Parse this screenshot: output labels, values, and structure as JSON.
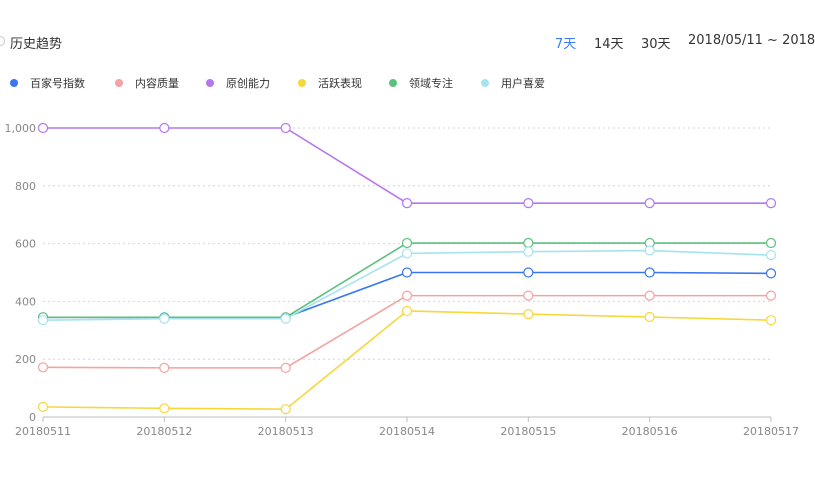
{
  "header": {
    "title": "历史趋势",
    "ranges": [
      {
        "label": "7天",
        "active": true
      },
      {
        "label": "14天",
        "active": false
      },
      {
        "label": "30天",
        "active": false
      }
    ],
    "date_range": "2018/05/11 ~ 2018"
  },
  "chart_data": {
    "type": "line",
    "x": [
      "20180511",
      "20180512",
      "20180513",
      "20180514",
      "20180515",
      "20180516",
      "20180517"
    ],
    "ylim": [
      0,
      1000
    ],
    "yticks": [
      0,
      200,
      400,
      600,
      800,
      1000
    ],
    "ytick_labels": [
      "0",
      "200",
      "400",
      "600",
      "800",
      "1,000"
    ],
    "grid": true,
    "legend_position": "top-left",
    "series": [
      {
        "name": "百家号指数",
        "color": "#3b77f0",
        "values": [
          345,
          345,
          345,
          500,
          500,
          500,
          497
        ]
      },
      {
        "name": "内容质量",
        "color": "#f4a2a2",
        "values": [
          172,
          170,
          170,
          420,
          420,
          420,
          420
        ]
      },
      {
        "name": "原创能力",
        "color": "#b576f0",
        "values": [
          1000,
          1000,
          1000,
          740,
          740,
          740,
          740
        ]
      },
      {
        "name": "活跃表现",
        "color": "#f7d73c",
        "values": [
          35,
          30,
          27,
          367,
          356,
          346,
          335
        ]
      },
      {
        "name": "领域专注",
        "color": "#5cc07e",
        "values": [
          345,
          345,
          345,
          602,
          602,
          602,
          602
        ]
      },
      {
        "name": "用户喜爱",
        "color": "#a6e3ee",
        "values": [
          335,
          340,
          340,
          566,
          572,
          576,
          560
        ]
      }
    ]
  }
}
